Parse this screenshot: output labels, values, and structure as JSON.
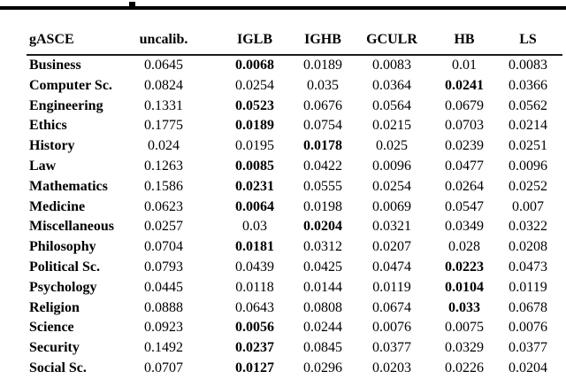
{
  "table": {
    "columns": [
      "gASCE",
      "uncalib.",
      "IGLB",
      "IGHB",
      "GCULR",
      "HB",
      "LS"
    ],
    "rows": [
      {
        "label": "Business",
        "values": [
          "0.0645",
          "0.0068",
          "0.0189",
          "0.0083",
          "0.01",
          "0.0083"
        ],
        "bold_index": 1
      },
      {
        "label": "Computer Sc.",
        "values": [
          "0.0824",
          "0.0254",
          "0.035",
          "0.0364",
          "0.0241",
          "0.0366"
        ],
        "bold_index": 4
      },
      {
        "label": "Engineering",
        "values": [
          "0.1331",
          "0.0523",
          "0.0676",
          "0.0564",
          "0.0679",
          "0.0562"
        ],
        "bold_index": 1
      },
      {
        "label": "Ethics",
        "values": [
          "0.1775",
          "0.0189",
          "0.0754",
          "0.0215",
          "0.0703",
          "0.0214"
        ],
        "bold_index": 1
      },
      {
        "label": "History",
        "values": [
          "0.024",
          "0.0195",
          "0.0178",
          "0.025",
          "0.0239",
          "0.0251"
        ],
        "bold_index": 2
      },
      {
        "label": "Law",
        "values": [
          "0.1263",
          "0.0085",
          "0.0422",
          "0.0096",
          "0.0477",
          "0.0096"
        ],
        "bold_index": 1
      },
      {
        "label": "Mathematics",
        "values": [
          "0.1586",
          "0.0231",
          "0.0555",
          "0.0254",
          "0.0264",
          "0.0252"
        ],
        "bold_index": 1
      },
      {
        "label": "Medicine",
        "values": [
          "0.0623",
          "0.0064",
          "0.0198",
          "0.0069",
          "0.0547",
          "0.007"
        ],
        "bold_index": 1
      },
      {
        "label": "Miscellaneous",
        "values": [
          "0.0257",
          "0.03",
          "0.0204",
          "0.0321",
          "0.0349",
          "0.0322"
        ],
        "bold_index": 2
      },
      {
        "label": "Philosophy",
        "values": [
          "0.0704",
          "0.0181",
          "0.0312",
          "0.0207",
          "0.028",
          "0.0208"
        ],
        "bold_index": 1
      },
      {
        "label": "Political Sc.",
        "values": [
          "0.0793",
          "0.0439",
          "0.0425",
          "0.0474",
          "0.0223",
          "0.0473"
        ],
        "bold_index": 4
      },
      {
        "label": "Psychology",
        "values": [
          "0.0445",
          "0.0118",
          "0.0144",
          "0.0119",
          "0.0104",
          "0.0119"
        ],
        "bold_index": 4
      },
      {
        "label": "Religion",
        "values": [
          "0.0888",
          "0.0643",
          "0.0808",
          "0.0674",
          "0.033",
          "0.0678"
        ],
        "bold_index": 4
      },
      {
        "label": "Science",
        "values": [
          "0.0923",
          "0.0056",
          "0.0244",
          "0.0076",
          "0.0075",
          "0.0076"
        ],
        "bold_index": 1
      },
      {
        "label": "Security",
        "values": [
          "0.1492",
          "0.0237",
          "0.0845",
          "0.0377",
          "0.0329",
          "0.0377"
        ],
        "bold_index": 1
      },
      {
        "label": "Social Sc.",
        "values": [
          "0.0707",
          "0.0127",
          "0.0296",
          "0.0203",
          "0.0226",
          "0.0204"
        ],
        "bold_index": 1
      }
    ]
  }
}
